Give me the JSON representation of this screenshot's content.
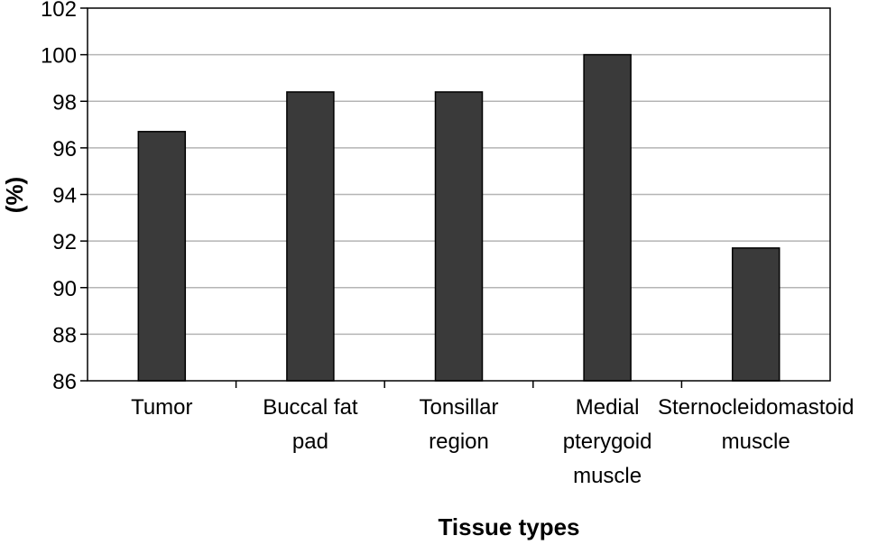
{
  "chart_data": {
    "type": "bar",
    "categories": [
      [
        "Tumor"
      ],
      [
        "Buccal fat",
        "pad"
      ],
      [
        "Tonsillar",
        "region"
      ],
      [
        "Medial",
        "pterygoid",
        "muscle"
      ],
      [
        "Sternocleidomastoid",
        "muscle"
      ]
    ],
    "values": [
      96.7,
      98.4,
      98.4,
      100.0,
      91.7
    ],
    "title": "",
    "xlabel": "Tissue types",
    "ylabel": "(%)",
    "ylim": [
      86,
      102
    ],
    "yticks": [
      "86",
      "88",
      "90",
      "92",
      "94",
      "96",
      "98",
      "100",
      "102"
    ],
    "grid": true,
    "legend": "none",
    "colors": {
      "bar": "#3a3a3a",
      "grid": "#b5b5b5",
      "axis": "#000000"
    }
  }
}
